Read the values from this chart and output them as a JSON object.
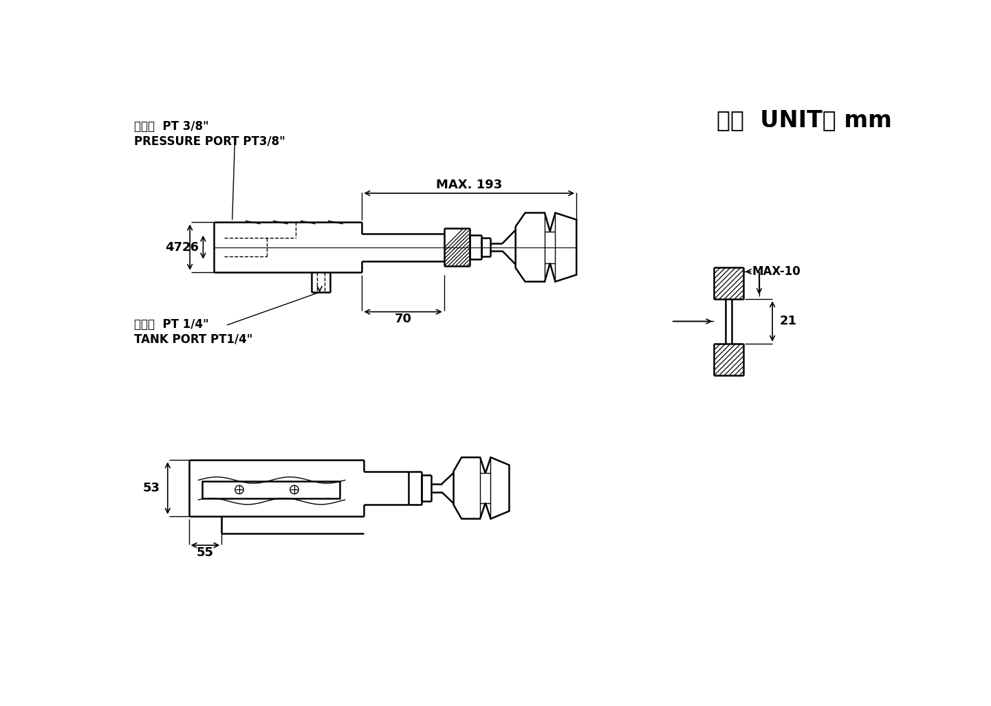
{
  "bg_color": "#ffffff",
  "line_color": "#000000",
  "title_text": "單位  UNIT： mm",
  "label_pressure_zh": "壓力孔  PT 3/8\"",
  "label_pressure_en": "PRESSURE PORT PT3/8\"",
  "label_tank_zh": "回油孔  PT 1/4\"",
  "label_tank_en": "TANK PORT PT1/4\"",
  "dim_max193": "MAX. 193",
  "dim_47": "47",
  "dim_26": "26",
  "dim_70": "70",
  "dim_53": "53",
  "dim_55": "55",
  "dim_max10": "MAX-10",
  "dim_21": "21"
}
